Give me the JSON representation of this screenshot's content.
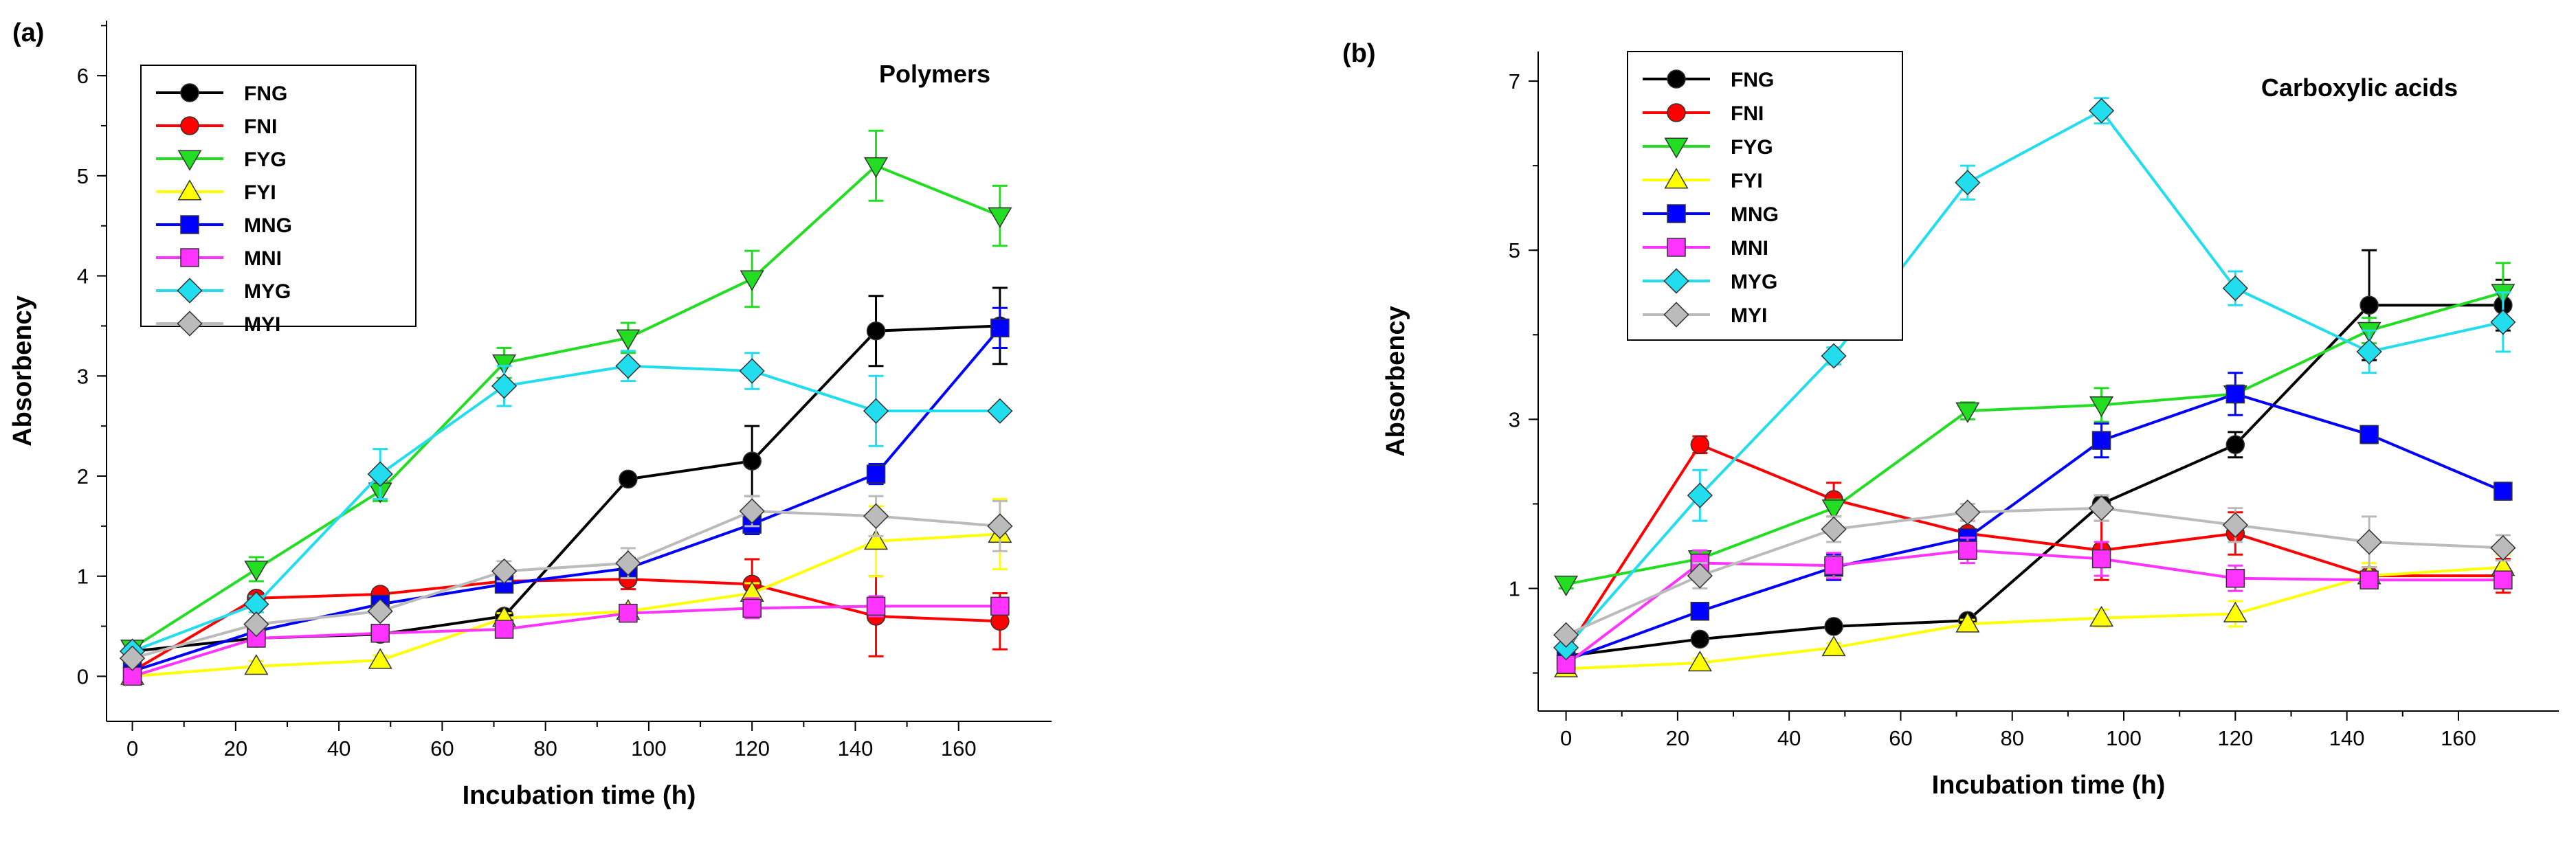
{
  "chart_data": [
    {
      "type": "line",
      "panel_label": "(a)",
      "title": "Polymers",
      "xlabel": "Incubation time (h)",
      "ylabel": "Absorbency",
      "xlim": [
        -5,
        178
      ],
      "ylim": [
        -0.45,
        6.55
      ],
      "xticks": [
        0,
        20,
        40,
        60,
        80,
        100,
        120,
        140,
        160
      ],
      "yticks": [
        0,
        1,
        2,
        3,
        4,
        5,
        6
      ],
      "x": [
        0,
        24,
        48,
        72,
        96,
        120,
        144,
        168
      ],
      "legend_position": "top-left",
      "series": [
        {
          "name": "FNG",
          "color": "#000000",
          "marker": "circle",
          "values": [
            0.25,
            0.38,
            0.42,
            0.6,
            1.97,
            2.15,
            3.45,
            3.5
          ],
          "errors": [
            0.05,
            0.05,
            0.05,
            0.05,
            0.05,
            0.35,
            0.35,
            0.38
          ]
        },
        {
          "name": "FNI",
          "color": "#ff0000",
          "marker": "circle",
          "values": [
            0.05,
            0.78,
            0.82,
            0.95,
            0.97,
            0.92,
            0.6,
            0.55
          ],
          "errors": [
            0.05,
            0.05,
            0.05,
            0.05,
            0.1,
            0.25,
            0.4,
            0.28
          ]
        },
        {
          "name": "FYG",
          "color": "#22dd22",
          "marker": "triangle-down",
          "values": [
            0.28,
            1.07,
            1.85,
            3.13,
            3.38,
            3.97,
            5.1,
            4.6
          ],
          "errors": [
            0.05,
            0.12,
            0.1,
            0.15,
            0.15,
            0.28,
            0.35,
            0.3
          ]
        },
        {
          "name": "FYI",
          "color": "#ffff00",
          "marker": "triangle-up",
          "values": [
            0.0,
            0.1,
            0.16,
            0.58,
            0.65,
            0.83,
            1.35,
            1.42
          ],
          "errors": [
            0.03,
            0.05,
            0.05,
            0.05,
            0.05,
            0.1,
            0.35,
            0.35
          ]
        },
        {
          "name": "MNG",
          "color": "#0000ff",
          "marker": "square",
          "values": [
            0.05,
            0.45,
            0.72,
            0.92,
            1.08,
            1.52,
            2.02,
            3.48
          ],
          "errors": [
            0.05,
            0.05,
            0.05,
            0.08,
            0.1,
            0.1,
            0.1,
            0.2
          ]
        },
        {
          "name": "MNI",
          "color": "#ff33ff",
          "marker": "square",
          "values": [
            0.0,
            0.38,
            0.43,
            0.47,
            0.63,
            0.68,
            0.7,
            0.7
          ],
          "errors": [
            0.03,
            0.05,
            0.05,
            0.05,
            0.08,
            0.1,
            0.1,
            0.08
          ]
        },
        {
          "name": "MYG",
          "color": "#22ddee",
          "marker": "diamond",
          "values": [
            0.25,
            0.72,
            2.02,
            2.9,
            3.1,
            3.05,
            2.65,
            2.65
          ],
          "errors": [
            0.05,
            0.08,
            0.25,
            0.2,
            0.15,
            0.18,
            0.35,
            0.05
          ]
        },
        {
          "name": "MYI",
          "color": "#bbbbbb",
          "marker": "diamond",
          "values": [
            0.18,
            0.52,
            0.65,
            1.05,
            1.13,
            1.65,
            1.6,
            1.5
          ],
          "errors": [
            0.05,
            0.05,
            0.05,
            0.1,
            0.15,
            0.15,
            0.2,
            0.25
          ]
        }
      ]
    },
    {
      "type": "line",
      "panel_label": "(b)",
      "title": "Carboxylic acids",
      "xlabel": "Incubation time (h)",
      "ylabel": "Absorbency",
      "xlim": [
        -5,
        178
      ],
      "ylim": [
        -0.45,
        7.35
      ],
      "xticks": [
        0,
        20,
        40,
        60,
        80,
        100,
        120,
        140,
        160
      ],
      "yticks": [
        1,
        3,
        5,
        7
      ],
      "x": [
        0,
        24,
        48,
        72,
        96,
        120,
        144,
        168
      ],
      "legend_position": "top-left",
      "series": [
        {
          "name": "FNG",
          "color": "#000000",
          "marker": "circle",
          "values": [
            0.2,
            0.4,
            0.55,
            0.62,
            2.0,
            2.7,
            4.35,
            4.35
          ],
          "errors": [
            0.05,
            0.05,
            0.05,
            0.05,
            0.1,
            0.15,
            0.65,
            0.3
          ]
        },
        {
          "name": "FNI",
          "color": "#ff0000",
          "marker": "circle",
          "values": [
            0.25,
            2.7,
            2.05,
            1.65,
            1.45,
            1.65,
            1.15,
            1.15
          ],
          "errors": [
            0.05,
            0.1,
            0.2,
            0.15,
            0.35,
            0.25,
            0.1,
            0.2
          ]
        },
        {
          "name": "FYG",
          "color": "#22dd22",
          "marker": "triangle-down",
          "values": [
            1.05,
            1.35,
            1.95,
            3.1,
            3.17,
            3.3,
            4.05,
            4.5
          ],
          "errors": [
            0.05,
            0.05,
            0.1,
            0.1,
            0.2,
            0.1,
            0.15,
            0.35
          ]
        },
        {
          "name": "FYI",
          "color": "#ffff00",
          "marker": "triangle-up",
          "values": [
            0.05,
            0.12,
            0.3,
            0.58,
            0.65,
            0.7,
            1.15,
            1.25
          ],
          "errors": [
            0.03,
            0.05,
            0.05,
            0.05,
            0.1,
            0.15,
            0.15,
            0.15
          ]
        },
        {
          "name": "MNG",
          "color": "#0000ff",
          "marker": "square",
          "values": [
            0.15,
            0.73,
            1.25,
            1.6,
            2.75,
            3.3,
            2.82,
            2.15
          ],
          "errors": [
            0.05,
            0.05,
            0.15,
            0.1,
            0.2,
            0.25,
            0.1,
            0.1
          ]
        },
        {
          "name": "MNI",
          "color": "#ff33ff",
          "marker": "square",
          "values": [
            0.1,
            1.3,
            1.27,
            1.45,
            1.35,
            1.12,
            1.1,
            1.1
          ],
          "errors": [
            0.05,
            0.15,
            0.15,
            0.15,
            0.2,
            0.15,
            0.1,
            0.1
          ]
        },
        {
          "name": "MYG",
          "color": "#22ddee",
          "marker": "diamond",
          "values": [
            0.3,
            2.1,
            3.75,
            5.8,
            6.65,
            4.55,
            3.8,
            4.15
          ],
          "errors": [
            0.05,
            0.3,
            0.1,
            0.2,
            0.15,
            0.2,
            0.25,
            0.35
          ]
        },
        {
          "name": "MYI",
          "color": "#bbbbbb",
          "marker": "diamond",
          "values": [
            0.45,
            1.15,
            1.7,
            1.9,
            1.95,
            1.75,
            1.55,
            1.48
          ],
          "errors": [
            0.05,
            0.15,
            0.15,
            0.1,
            0.15,
            0.2,
            0.3,
            0.15
          ]
        }
      ]
    }
  ]
}
